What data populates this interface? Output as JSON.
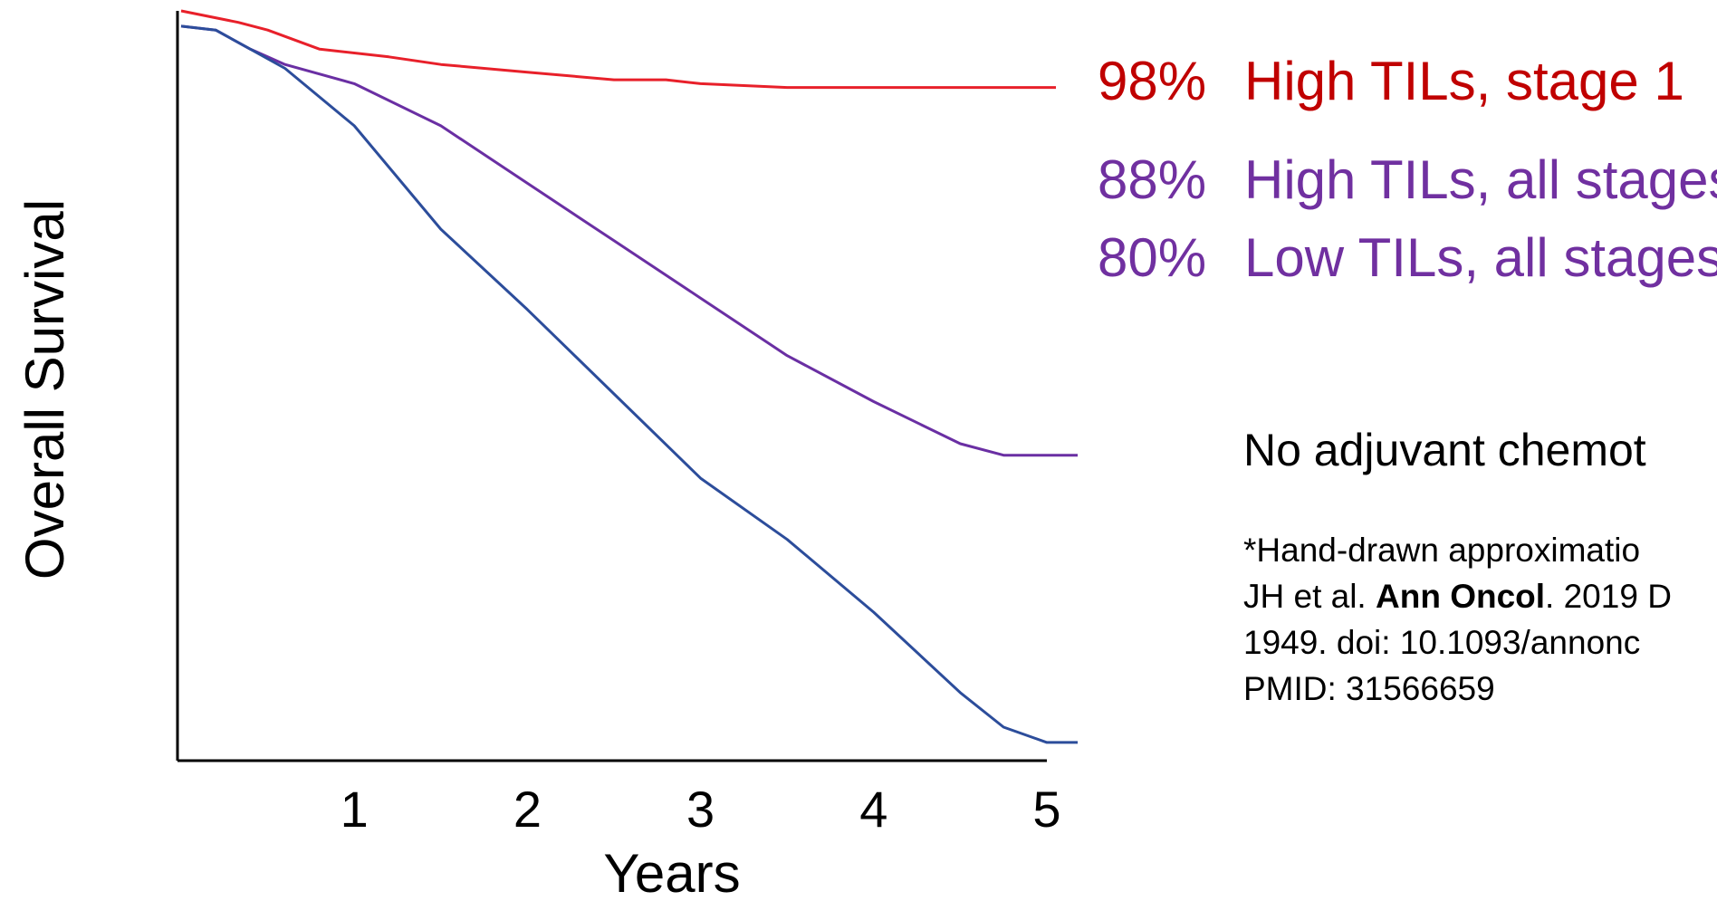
{
  "chart_data": {
    "type": "line",
    "xlabel": "Years",
    "ylabel": "Overall Survival",
    "xlim": [
      0,
      5
    ],
    "x_ticks": [
      "1",
      "2",
      "3",
      "4",
      "5"
    ],
    "grid": false,
    "legend": "end-of-line labels, right",
    "series": [
      {
        "name": "High TILs, stage 1",
        "end_label": "98%",
        "color": "#e8202a",
        "label_color": "#c00000",
        "x": [
          0,
          0.33,
          0.5,
          0.8,
          1.2,
          1.5,
          2.0,
          2.5,
          2.8,
          3.0,
          3.5,
          4.0,
          4.5,
          4.75,
          5.0
        ],
        "y": [
          1.0,
          0.997,
          0.995,
          0.99,
          0.988,
          0.986,
          0.984,
          0.982,
          0.982,
          0.981,
          0.98,
          0.98,
          0.98,
          0.98,
          0.98
        ]
      },
      {
        "name": "High TILs, all stages",
        "end_label": "88%",
        "color": "#6a2fa3",
        "label_color": "#7030a0",
        "x": [
          0,
          0.2,
          0.4,
          0.6,
          1.0,
          1.5,
          2.0,
          2.5,
          3.0,
          3.5,
          4.0,
          4.5,
          4.75,
          5.0
        ],
        "y": [
          0.996,
          0.995,
          0.99,
          0.986,
          0.981,
          0.97,
          0.955,
          0.94,
          0.925,
          0.91,
          0.898,
          0.887,
          0.884,
          0.884
        ]
      },
      {
        "name": "Low TILs, all stages",
        "end_label": "80%",
        "color": "#2c4d9b",
        "label_color": "#7030a0",
        "x": [
          0,
          0.2,
          0.4,
          0.6,
          1.0,
          1.5,
          2.0,
          2.5,
          3.0,
          3.5,
          4.0,
          4.5,
          4.75,
          5.0
        ],
        "y": [
          0.996,
          0.995,
          0.99,
          0.985,
          0.97,
          0.943,
          0.922,
          0.9,
          0.878,
          0.862,
          0.843,
          0.822,
          0.813,
          0.809
        ]
      }
    ]
  },
  "condition": "No adjuvant chemot",
  "citation": {
    "line1": "*Hand-drawn approximatio",
    "line2_prefix": "JH et al. ",
    "journal": "Ann Oncol",
    "line2_suffix": ". 2019 D",
    "line3": "1949. doi: 10.1093/annonc",
    "line4": "PMID: 31566659"
  }
}
